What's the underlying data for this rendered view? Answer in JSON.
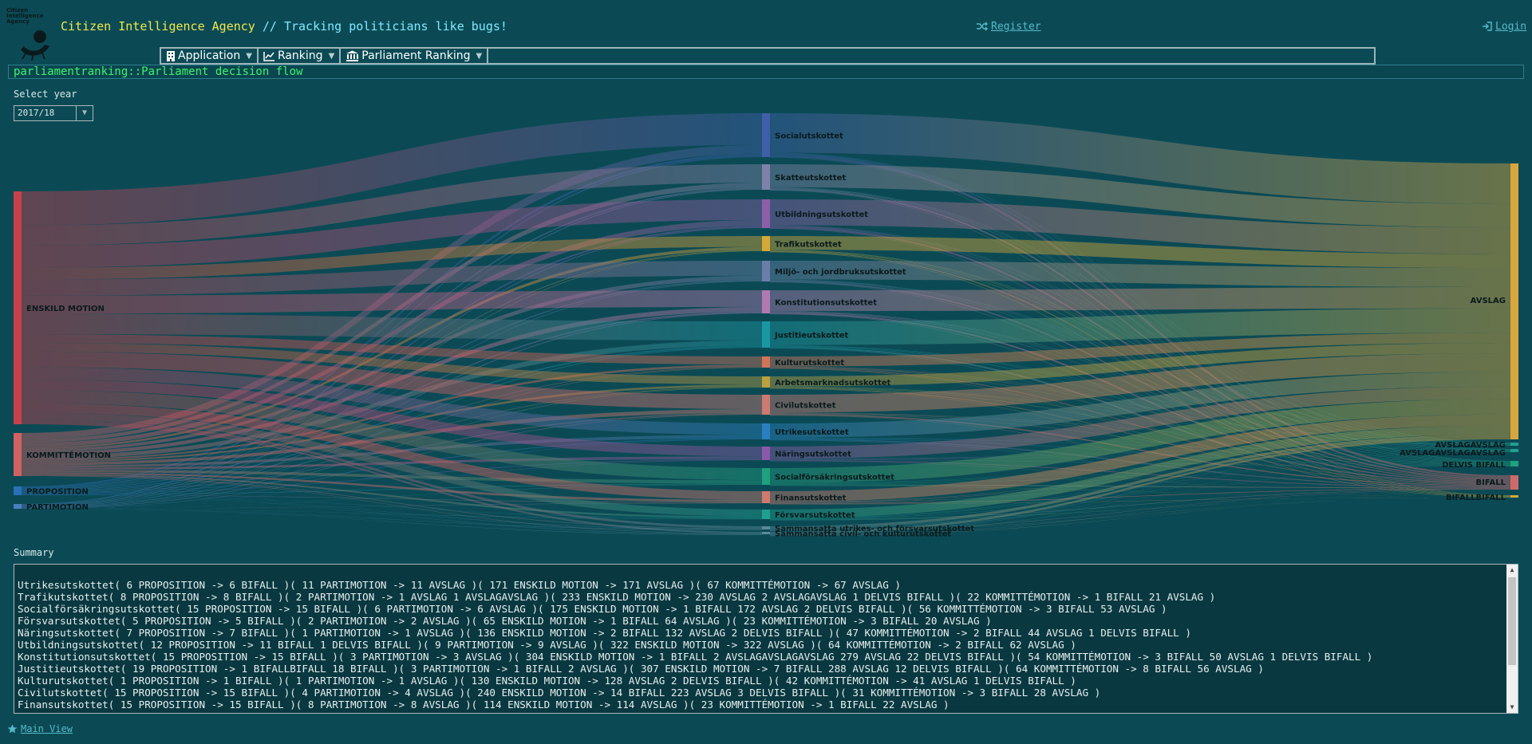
{
  "header": {
    "logo_text": "Citizen Intelligence Agency",
    "site_name": "Citizen Intelligence Agency",
    "slogan": " // Tracking politicians like bugs!",
    "register": "Register",
    "login": "Login"
  },
  "menu": [
    {
      "label": "Application",
      "icon": "building-icon"
    },
    {
      "label": "Ranking",
      "icon": "line-chart-icon"
    },
    {
      "label": "Parliament Ranking",
      "icon": "parliament-icon"
    }
  ],
  "page_title": "parliamentranking::Parliament decision flow",
  "year_select": {
    "label": "Select year",
    "value": "2017/18"
  },
  "chart_data": {
    "type": "sankey",
    "sources": [
      "ENSKILD MOTION",
      "KOMMITTÉMOTION",
      "PROPOSITION",
      "PARTIMOTION"
    ],
    "committees": [
      "Socialutskottet",
      "Skatteutskottet",
      "Utbildningsutskottet",
      "Trafikutskottet",
      "Miljö- och jordbruksutskottet",
      "Konstitutionsutskottet",
      "Justitieutskottet",
      "Kulturutskottet",
      "Arbetsmarknadsutskottet",
      "Civilutskottet",
      "Utrikesutskottet",
      "Näringsutskottet",
      "Socialförsäkringsutskottet",
      "Finansutskottet",
      "Försvarsutskottet",
      "Sammansatta utrikes- och försvarsutskottet",
      "Sammansatta civil- och kulturutskottet"
    ],
    "outcomes": [
      "AVSLAG",
      "AVSLAGAVSLAG",
      "AVSLAGAVSLAGAVSLAG",
      "DELVIS BIFALL",
      "BIFALL",
      "BIFALLBIFALL"
    ]
  },
  "summary": {
    "label": "Summary",
    "lines": [
      "Utrikesutskottet( 6 PROPOSITION -> 6 BIFALL )( 11 PARTIMOTION -> 11 AVSLAG )( 171 ENSKILD MOTION -> 171 AVSLAG )( 67 KOMMITTÉMOTION -> 67 AVSLAG )",
      "Trafikutskottet( 8 PROPOSITION -> 8 BIFALL )( 2 PARTIMOTION -> 1 AVSLAG 1 AVSLAGAVSLAG )( 233 ENSKILD MOTION -> 230 AVSLAG 2 AVSLAGAVSLAG 1 DELVIS BIFALL )( 22 KOMMITTÉMOTION -> 1 BIFALL 21 AVSLAG )",
      "Socialförsäkringsutskottet( 15 PROPOSITION -> 15 BIFALL )( 6 PARTIMOTION -> 6 AVSLAG )( 175 ENSKILD MOTION -> 1 BIFALL 172 AVSLAG 2 DELVIS BIFALL )( 56 KOMMITTÉMOTION -> 3 BIFALL 53 AVSLAG )",
      "Försvarsutskottet( 5 PROPOSITION -> 5 BIFALL )( 2 PARTIMOTION -> 2 AVSLAG )( 65 ENSKILD MOTION -> 1 BIFALL 64 AVSLAG )( 23 KOMMITTÉMOTION -> 3 BIFALL 20 AVSLAG )",
      "Näringsutskottet( 7 PROPOSITION -> 7 BIFALL )( 1 PARTIMOTION -> 1 AVSLAG )( 136 ENSKILD MOTION -> 2 BIFALL 132 AVSLAG 2 DELVIS BIFALL )( 47 KOMMITTÉMOTION -> 2 BIFALL 44 AVSLAG 1 DELVIS BIFALL )",
      "Utbildningsutskottet( 12 PROPOSITION -> 11 BIFALL 1 DELVIS BIFALL )( 9 PARTIMOTION -> 9 AVSLAG )( 322 ENSKILD MOTION -> 322 AVSLAG )( 64 KOMMITTÉMOTION -> 2 BIFALL 62 AVSLAG )",
      "Konstitutionsutskottet( 15 PROPOSITION -> 15 BIFALL )( 3 PARTIMOTION -> 3 AVSLAG )( 304 ENSKILD MOTION -> 1 BIFALL 2 AVSLAGAVSLAGAVSLAG 279 AVSLAG 22 DELVIS BIFALL )( 54 KOMMITTÉMOTION -> 3 BIFALL 50 AVSLAG 1 DELVIS BIFALL )",
      "Justitieutskottet( 19 PROPOSITION -> 1 BIFALLBIFALL 18 BIFALL )( 3 PARTIMOTION -> 1 BIFALL 2 AVSLAG )( 307 ENSKILD MOTION -> 7 BIFALL 288 AVSLAG 12 DELVIS BIFALL )( 64 KOMMITTÉMOTION -> 8 BIFALL 56 AVSLAG )",
      "Kulturutskottet( 1 PROPOSITION -> 1 BIFALL )( 1 PARTIMOTION -> 1 AVSLAG )( 130 ENSKILD MOTION -> 128 AVSLAG 2 DELVIS BIFALL )( 42 KOMMITTÉMOTION -> 41 AVSLAG 1 DELVIS BIFALL )",
      "Civilutskottet( 15 PROPOSITION -> 15 BIFALL )( 4 PARTIMOTION -> 4 AVSLAG )( 240 ENSKILD MOTION -> 14 BIFALL 223 AVSLAG 3 DELVIS BIFALL )( 31 KOMMITTÉMOTION -> 3 BIFALL 28 AVSLAG )",
      "Finansutskottet( 15 PROPOSITION -> 15 BIFALL )( 8 PARTIMOTION -> 8 AVSLAG )( 114 ENSKILD MOTION -> 114 AVSLAG )( 23 KOMMITTÉMOTION -> 1 BIFALL 22 AVSLAG )"
    ]
  },
  "footer": {
    "main_view": "Main View"
  }
}
